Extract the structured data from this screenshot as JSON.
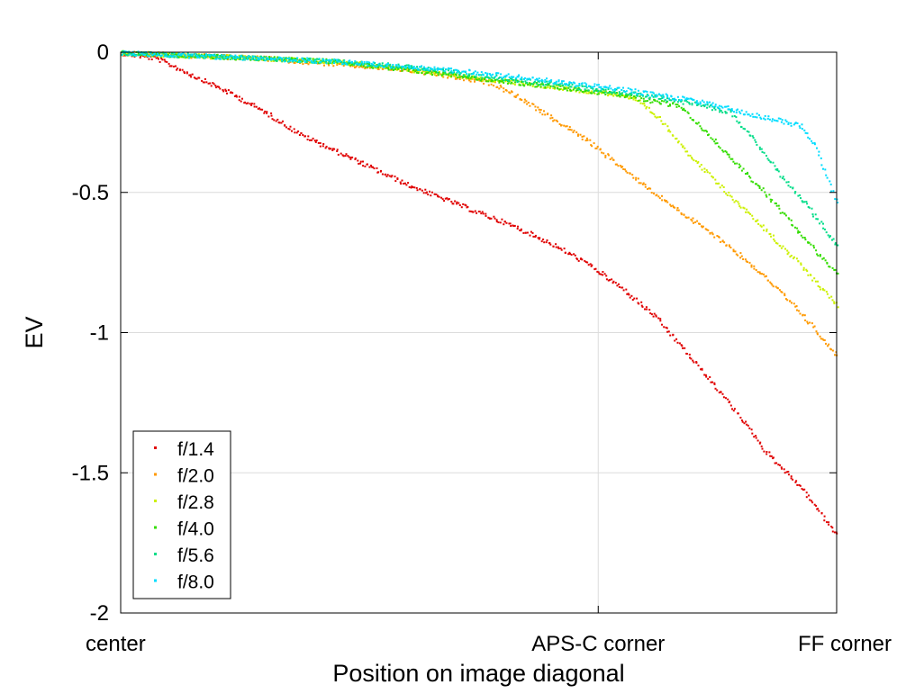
{
  "chart_data": {
    "type": "scatter",
    "title": "",
    "xlabel": "Position on image diagonal",
    "ylabel": "EV",
    "xlim": [
      0,
      1
    ],
    "ylim": [
      -2,
      0
    ],
    "grid": true,
    "legend_position": "bottom-left",
    "x_ticks": [
      {
        "value": 0,
        "label": "center"
      },
      {
        "value": 0.667,
        "label": "APS-C corner"
      },
      {
        "value": 1,
        "label": "FF corner"
      }
    ],
    "y_ticks": [
      {
        "value": 0,
        "label": "0"
      },
      {
        "value": -0.5,
        "label": "-0.5"
      },
      {
        "value": -1,
        "label": "-1"
      },
      {
        "value": -1.5,
        "label": "-1.5"
      },
      {
        "value": -2,
        "label": "-2"
      }
    ],
    "series": [
      {
        "name": "f/1.4",
        "color": "#e00000",
        "x": [
          0.0,
          0.05,
          0.1,
          0.15,
          0.2,
          0.25,
          0.3,
          0.35,
          0.4,
          0.45,
          0.5,
          0.55,
          0.6,
          0.65,
          0.7,
          0.75,
          0.8,
          0.85,
          0.9,
          0.95,
          1.0
        ],
        "y": [
          0.0,
          -0.02,
          -0.08,
          -0.14,
          -0.21,
          -0.29,
          -0.35,
          -0.41,
          -0.47,
          -0.52,
          -0.57,
          -0.62,
          -0.68,
          -0.75,
          -0.84,
          -0.95,
          -1.1,
          -1.25,
          -1.42,
          -1.55,
          -1.72
        ]
      },
      {
        "name": "f/2.0",
        "color": "#ff9900",
        "x": [
          0.0,
          0.1,
          0.2,
          0.3,
          0.4,
          0.45,
          0.5,
          0.52,
          0.55,
          0.6,
          0.65,
          0.7,
          0.75,
          0.8,
          0.85,
          0.9,
          0.95,
          1.0
        ],
        "y": [
          0.0,
          -0.01,
          -0.02,
          -0.04,
          -0.06,
          -0.08,
          -0.1,
          -0.11,
          -0.15,
          -0.23,
          -0.31,
          -0.41,
          -0.51,
          -0.6,
          -0.69,
          -0.8,
          -0.93,
          -1.08
        ]
      },
      {
        "name": "f/2.8",
        "color": "#ccf000",
        "x": [
          0.0,
          0.1,
          0.2,
          0.3,
          0.4,
          0.5,
          0.6,
          0.7,
          0.72,
          0.75,
          0.8,
          0.85,
          0.9,
          0.95,
          1.0
        ],
        "y": [
          0.0,
          -0.01,
          -0.02,
          -0.03,
          -0.06,
          -0.09,
          -0.12,
          -0.15,
          -0.17,
          -0.23,
          -0.38,
          -0.51,
          -0.63,
          -0.76,
          -0.9
        ]
      },
      {
        "name": "f/4.0",
        "color": "#33dd00",
        "x": [
          0.0,
          0.1,
          0.2,
          0.3,
          0.4,
          0.5,
          0.6,
          0.7,
          0.78,
          0.8,
          0.85,
          0.9,
          0.95,
          1.0
        ],
        "y": [
          0.0,
          -0.01,
          -0.02,
          -0.03,
          -0.06,
          -0.09,
          -0.12,
          -0.15,
          -0.19,
          -0.24,
          -0.37,
          -0.5,
          -0.65,
          -0.79
        ]
      },
      {
        "name": "f/5.6",
        "color": "#00dd88",
        "x": [
          0.0,
          0.1,
          0.2,
          0.3,
          0.4,
          0.5,
          0.6,
          0.7,
          0.8,
          0.85,
          0.88,
          0.92,
          0.96,
          1.0
        ],
        "y": [
          0.0,
          -0.01,
          -0.02,
          -0.03,
          -0.05,
          -0.08,
          -0.11,
          -0.14,
          -0.18,
          -0.21,
          -0.3,
          -0.43,
          -0.55,
          -0.69
        ]
      },
      {
        "name": "f/8.0",
        "color": "#00ddff",
        "x": [
          0.0,
          0.1,
          0.2,
          0.3,
          0.4,
          0.5,
          0.6,
          0.7,
          0.8,
          0.85,
          0.9,
          0.95,
          0.97,
          1.0
        ],
        "y": [
          0.0,
          -0.01,
          -0.02,
          -0.03,
          -0.05,
          -0.07,
          -0.1,
          -0.13,
          -0.17,
          -0.2,
          -0.23,
          -0.26,
          -0.33,
          -0.54
        ]
      }
    ]
  }
}
